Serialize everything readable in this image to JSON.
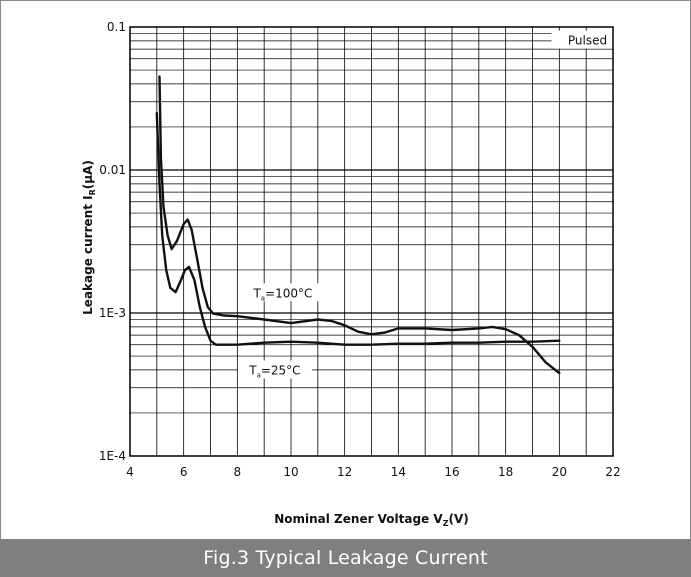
{
  "caption": "Fig.3  Typical Leakage Current",
  "chart_data": {
    "type": "line",
    "title": "",
    "xlabel": "Nominal Zener Voltage  V",
    "xlabel_sub": "Z",
    "xlabel_unit": "(V)",
    "ylabel": "Leakage current  I",
    "ylabel_sub": "R",
    "ylabel_unit": "(μA)",
    "x_scale": "linear",
    "y_scale": "log",
    "xlim": [
      4,
      22
    ],
    "ylim": [
      0.0001,
      0.1
    ],
    "x_ticks": [
      4,
      6,
      8,
      10,
      12,
      14,
      16,
      18,
      20,
      22
    ],
    "x_tick_labels": [
      "4",
      "6",
      "8",
      "10",
      "12",
      "14",
      "16",
      "18",
      "20",
      "22"
    ],
    "y_ticks": [
      0.0001,
      0.001,
      0.01,
      0.1
    ],
    "y_tick_labels": [
      "1E-4",
      "1E-3",
      "0.01",
      "0.1"
    ],
    "grid": true,
    "annotations": [
      {
        "text": "Pulsed"
      },
      {
        "base": "T",
        "sub": "a",
        "rest": "=100°C"
      },
      {
        "base": "T",
        "sub": "a",
        "rest": "=25°C"
      }
    ],
    "series": [
      {
        "condition": "Ta=100°C",
        "x": [
          5.1,
          5.15,
          5.25,
          5.4,
          5.55,
          5.75,
          6.0,
          6.15,
          6.3,
          6.5,
          6.7,
          6.9,
          7.1,
          7.5,
          8,
          9,
          10,
          11,
          11.5,
          12,
          12.5,
          13,
          13.5,
          14,
          15,
          16,
          17,
          17.5,
          18,
          18.5,
          19,
          19.5,
          20
        ],
        "y": [
          0.045,
          0.012,
          0.0055,
          0.0035,
          0.0028,
          0.0032,
          0.0042,
          0.0045,
          0.0038,
          0.0024,
          0.0015,
          0.0011,
          0.00099,
          0.00096,
          0.00095,
          0.0009,
          0.00085,
          0.0009,
          0.00088,
          0.00082,
          0.00074,
          0.00071,
          0.00073,
          0.00078,
          0.00078,
          0.00076,
          0.00078,
          0.0008,
          0.00077,
          0.0007,
          0.00058,
          0.00045,
          0.00038
        ]
      },
      {
        "condition": "Ta=25°C",
        "x": [
          5.0,
          5.1,
          5.2,
          5.35,
          5.5,
          5.7,
          5.9,
          6.05,
          6.2,
          6.4,
          6.6,
          6.8,
          7.0,
          7.2,
          7.5,
          8,
          9,
          10,
          11,
          12,
          13,
          14,
          15,
          16,
          17,
          18,
          19,
          20
        ],
        "y": [
          0.025,
          0.008,
          0.0035,
          0.002,
          0.0015,
          0.0014,
          0.0017,
          0.002,
          0.0021,
          0.0017,
          0.0011,
          0.0008,
          0.00064,
          0.0006,
          0.0006,
          0.0006,
          0.00062,
          0.00063,
          0.00062,
          0.0006,
          0.0006,
          0.00061,
          0.00061,
          0.00062,
          0.00062,
          0.00063,
          0.00063,
          0.00064
        ]
      }
    ]
  }
}
